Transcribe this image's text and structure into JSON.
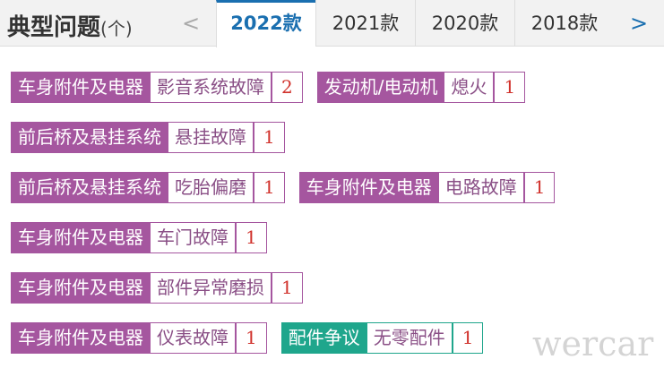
{
  "header": {
    "title": "典型问题",
    "unit": "(个)",
    "prev": "<",
    "tabs": [
      "2022款",
      "2021款",
      "2020款",
      "2018款"
    ],
    "active_tab": 0,
    "next": ">"
  },
  "rows": [
    [
      {
        "category": "车身附件及电器",
        "issue": "影音系统故障",
        "count": 2,
        "color": "#a5569f"
      },
      {
        "category": "发动机/电动机",
        "issue": "熄火",
        "count": 1,
        "color": "#a5569f"
      }
    ],
    [
      {
        "category": "前后桥及悬挂系统",
        "issue": "悬挂故障",
        "count": 1,
        "color": "#a5569f"
      }
    ],
    [
      {
        "category": "前后桥及悬挂系统",
        "issue": "吃胎偏磨",
        "count": 1,
        "color": "#a5569f"
      },
      {
        "category": "车身附件及电器",
        "issue": "电路故障",
        "count": 1,
        "color": "#a5569f"
      }
    ],
    [
      {
        "category": "车身附件及电器",
        "issue": "车门故障",
        "count": 1,
        "color": "#a5569f"
      }
    ],
    [
      {
        "category": "车身附件及电器",
        "issue": "部件异常磨损",
        "count": 1,
        "color": "#a5569f"
      }
    ],
    [
      {
        "category": "车身附件及电器",
        "issue": "仪表故障",
        "count": 1,
        "color": "#a5569f"
      },
      {
        "category": "配件争议",
        "issue": "无零配件",
        "count": 1,
        "color": "#1fa68c"
      }
    ]
  ],
  "watermark": "wercar"
}
